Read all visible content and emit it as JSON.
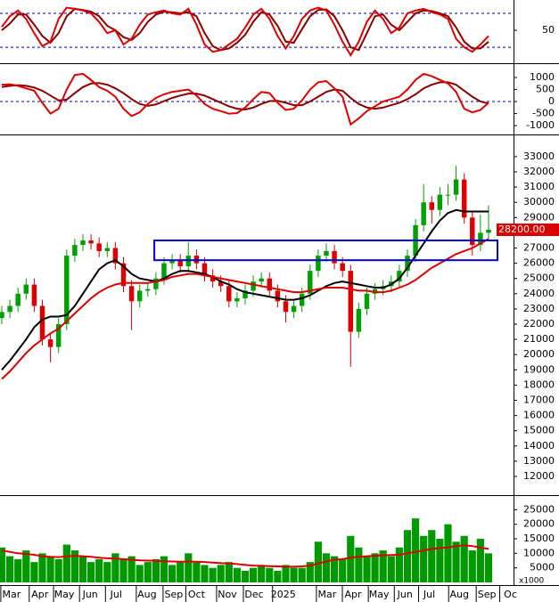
{
  "chart_data": [
    {
      "type": "line",
      "ylim": [
        -5,
        102
      ],
      "yticks": [
        50
      ],
      "levels": [
        20,
        80
      ],
      "level_color": "#0000aa",
      "series": [
        {
          "color": "#dd0000",
          "values": [
            56,
            75,
            85,
            70,
            45,
            22,
            30,
            70,
            90,
            88,
            85,
            80,
            65,
            45,
            50,
            25,
            35,
            60,
            78,
            82,
            85,
            80,
            78,
            88,
            60,
            25,
            12,
            15,
            25,
            35,
            55,
            78,
            88,
            70,
            40,
            18,
            40,
            70,
            85,
            90,
            85,
            60,
            30,
            6,
            30,
            65,
            85,
            70,
            45,
            55,
            80,
            85,
            88,
            82,
            78,
            70,
            35,
            20,
            12,
            25,
            40
          ]
        },
        {
          "color": "#880000",
          "values": [
            50,
            62,
            78,
            78,
            60,
            40,
            28,
            45,
            75,
            88,
            86,
            83,
            75,
            58,
            50,
            38,
            33,
            45,
            65,
            78,
            83,
            82,
            80,
            82,
            75,
            45,
            22,
            15,
            18,
            28,
            42,
            65,
            82,
            78,
            58,
            30,
            28,
            52,
            75,
            86,
            87,
            75,
            50,
            20,
            15,
            45,
            75,
            78,
            60,
            50,
            65,
            80,
            85,
            84,
            80,
            75,
            55,
            30,
            18,
            18,
            30
          ]
        }
      ]
    },
    {
      "type": "line",
      "ylim": [
        -1330,
        1480
      ],
      "yticks": [
        1000,
        500,
        0,
        -500,
        -1000
      ],
      "levels": [
        0
      ],
      "level_color": "#0000aa",
      "series": [
        {
          "color": "#dd0000",
          "values": [
            700,
            720,
            650,
            550,
            450,
            -50,
            -500,
            -300,
            500,
            1100,
            1150,
            900,
            600,
            450,
            200,
            -300,
            -600,
            -450,
            -100,
            150,
            300,
            400,
            450,
            500,
            250,
            -100,
            -300,
            -400,
            -500,
            -480,
            -250,
            100,
            400,
            350,
            -50,
            -350,
            -300,
            50,
            500,
            800,
            850,
            550,
            200,
            -950,
            -700,
            -400,
            -200,
            0,
            100,
            200,
            500,
            900,
            1150,
            1050,
            900,
            750,
            400,
            -300,
            -450,
            -350,
            -50
          ]
        },
        {
          "color": "#880000",
          "values": [
            600,
            650,
            680,
            650,
            580,
            450,
            250,
            50,
            80,
            350,
            600,
            750,
            770,
            700,
            550,
            350,
            100,
            -100,
            -180,
            -120,
            20,
            150,
            250,
            330,
            330,
            250,
            100,
            -50,
            -200,
            -300,
            -330,
            -250,
            -100,
            20,
            30,
            -50,
            -150,
            -150,
            0,
            200,
            400,
            500,
            450,
            150,
            -100,
            -250,
            -300,
            -250,
            -150,
            -50,
            100,
            300,
            550,
            700,
            800,
            800,
            700,
            450,
            200,
            0,
            -80
          ]
        }
      ]
    },
    {
      "type": "candlestick",
      "ylim": [
        10830,
        34340
      ],
      "yticks": [
        12000,
        13000,
        14000,
        15000,
        16000,
        17000,
        18000,
        19000,
        20000,
        21000,
        22000,
        23000,
        24000,
        25000,
        26000,
        27000,
        28000,
        29000,
        30000,
        31000,
        32000,
        33000
      ],
      "up_color": "#00a000",
      "down_color": "#dd0000",
      "open": [
        22400,
        22800,
        23200,
        24000,
        24600,
        23200,
        21000,
        20500,
        22000,
        26500,
        27200,
        27500,
        27300,
        26800,
        27000,
        26000,
        24500,
        23500,
        24200,
        24300,
        25000,
        26000,
        26200,
        25800,
        26500,
        26000,
        25200,
        24800,
        24500,
        23500,
        23700,
        24200,
        24800,
        25000,
        24200,
        23500,
        22800,
        23200,
        24000,
        25500,
        26500,
        26800,
        26000,
        25500,
        21500,
        23000,
        24000,
        24300,
        24500,
        24800,
        25500,
        26500,
        28500,
        30000,
        29500,
        30500,
        30500,
        31500,
        29000,
        27200,
        28000
      ],
      "high": [
        23200,
        23600,
        24400,
        25000,
        25000,
        23600,
        21400,
        22400,
        26900,
        27600,
        27900,
        27900,
        27700,
        27400,
        27400,
        26400,
        24900,
        24600,
        24700,
        25400,
        26400,
        26600,
        26600,
        27400,
        26900,
        26400,
        25600,
        25200,
        24900,
        24100,
        24600,
        25200,
        25400,
        25400,
        24600,
        23900,
        23600,
        24400,
        25900,
        26900,
        27300,
        27200,
        26400,
        25900,
        23400,
        24400,
        24700,
        24900,
        25200,
        25900,
        26900,
        28900,
        31200,
        30400,
        31000,
        31200,
        32400,
        31900,
        29400,
        29200,
        29800
      ],
      "low": [
        22000,
        22400,
        22800,
        23600,
        22800,
        20600,
        19500,
        20100,
        21600,
        26100,
        26800,
        26900,
        26400,
        26400,
        25600,
        24100,
        21600,
        23100,
        23800,
        23900,
        24600,
        25600,
        25400,
        25400,
        25600,
        24800,
        24400,
        24100,
        23100,
        23100,
        23300,
        23800,
        24400,
        23800,
        23100,
        22100,
        22400,
        22800,
        23600,
        25100,
        26100,
        25600,
        25100,
        19200,
        21100,
        22600,
        23600,
        23900,
        24100,
        24400,
        25100,
        26100,
        28100,
        28600,
        29100,
        29800,
        30100,
        28600,
        26500,
        26800,
        27600
      ],
      "close": [
        22800,
        23200,
        24000,
        24600,
        23200,
        21000,
        20500,
        22000,
        26500,
        27200,
        27500,
        27300,
        26800,
        27000,
        26000,
        24500,
        23500,
        24200,
        24300,
        25000,
        26000,
        26200,
        25800,
        26500,
        26000,
        25200,
        24800,
        24500,
        23500,
        23700,
        24200,
        24800,
        25000,
        24200,
        23500,
        22800,
        23200,
        24000,
        25500,
        26500,
        26800,
        26000,
        25500,
        21500,
        23000,
        24000,
        24300,
        24500,
        24800,
        25500,
        26500,
        28500,
        30000,
        29500,
        30500,
        30500,
        31500,
        29000,
        27200,
        28000,
        28200
      ],
      "series": [
        {
          "color": "#000000",
          "values": [
            19000,
            19600,
            20300,
            21000,
            21800,
            22300,
            22500,
            22500,
            22600,
            23200,
            24000,
            24800,
            25600,
            26000,
            26200,
            25800,
            25300,
            25000,
            24900,
            24800,
            25000,
            25300,
            25500,
            25500,
            25400,
            25300,
            25100,
            24800,
            24600,
            24300,
            24100,
            24000,
            23900,
            23800,
            23700,
            23600,
            23600,
            23700,
            23900,
            24200,
            24500,
            24700,
            24800,
            24700,
            24600,
            24500,
            24400,
            24400,
            24600,
            25000,
            25700,
            26500,
            27300,
            28100,
            28800,
            29300,
            29500,
            29400,
            29400,
            29400,
            29400
          ]
        },
        {
          "color": "#dd0000",
          "values": [
            18400,
            18900,
            19500,
            20100,
            20600,
            21000,
            21400,
            21700,
            22200,
            22700,
            23200,
            23700,
            24100,
            24400,
            24600,
            24700,
            24700,
            24700,
            24700,
            24800,
            24900,
            25100,
            25200,
            25300,
            25300,
            25200,
            25100,
            25000,
            24900,
            24800,
            24700,
            24600,
            24500,
            24400,
            24300,
            24200,
            24100,
            24100,
            24200,
            24300,
            24400,
            24400,
            24400,
            24300,
            24200,
            24200,
            24100,
            24100,
            24200,
            24400,
            24600,
            24900,
            25300,
            25700,
            26000,
            26300,
            26600,
            26800,
            27000,
            27300,
            27600
          ]
        }
      ],
      "box": {
        "x": [
          18.8,
          61.1
        ],
        "y": [
          26200,
          27500
        ],
        "color": "#0000dd"
      },
      "last_label": "28200.00",
      "last_label_color": "#dd0000"
    },
    {
      "type": "bar",
      "ylim": [
        0,
        29400
      ],
      "yticks": [
        5000,
        10000,
        15000,
        20000,
        25000
      ],
      "color": "#009900",
      "values": [
        12000,
        9000,
        8000,
        11000,
        7000,
        10000,
        9000,
        8000,
        13000,
        11000,
        9000,
        7000,
        8000,
        7000,
        10000,
        8000,
        9000,
        6000,
        7000,
        8000,
        9000,
        6000,
        7000,
        10000,
        7000,
        6000,
        5000,
        6000,
        7000,
        5000,
        4000,
        5000,
        6000,
        5000,
        4000,
        6000,
        5000,
        5000,
        7000,
        14000,
        10000,
        9000,
        8000,
        16000,
        12000,
        9000,
        10000,
        11000,
        9000,
        12000,
        18000,
        22000,
        16000,
        18000,
        15000,
        20000,
        14000,
        16000,
        11000,
        15000,
        10000
      ],
      "series": [
        {
          "color": "#dd0000",
          "values": [
            11000,
            10500,
            10000,
            9800,
            9500,
            9000,
            8800,
            8700,
            8900,
            9200,
            9000,
            8800,
            8500,
            8300,
            8200,
            8000,
            7800,
            7600,
            7500,
            7400,
            7300,
            7200,
            7100,
            7200,
            7100,
            7000,
            6800,
            6600,
            6500,
            6300,
            6000,
            5800,
            5700,
            5600,
            5500,
            5400,
            5400,
            5500,
            5800,
            6500,
            7200,
            7800,
            8000,
            8500,
            8800,
            9000,
            9200,
            9300,
            9400,
            9500,
            10000,
            10500,
            11000,
            11500,
            11800,
            12000,
            12500,
            12800,
            12500,
            12000,
            11500
          ]
        }
      ],
      "unit_label": "x1000",
      "xlim": [
        -0.22,
        63.08
      ],
      "xticks": [
        {
          "value": 1.2,
          "label": "Mar"
        },
        {
          "value": 4.7,
          "label": "Apr"
        },
        {
          "value": 7.7,
          "label": "May"
        },
        {
          "value": 10.9,
          "label": "Jun"
        },
        {
          "value": 14.1,
          "label": "Jul"
        },
        {
          "value": 17.9,
          "label": "Aug"
        },
        {
          "value": 21.2,
          "label": "Sep"
        },
        {
          "value": 24,
          "label": "Oct"
        },
        {
          "value": 27.8,
          "label": "Nov"
        },
        {
          "value": 31.1,
          "label": "Dec"
        },
        {
          "value": 34.7,
          "label": "2025"
        },
        {
          "value": 40.1,
          "label": "Mar"
        },
        {
          "value": 43.3,
          "label": "Apr"
        },
        {
          "value": 46.5,
          "label": "May"
        },
        {
          "value": 49.7,
          "label": "Jun"
        },
        {
          "value": 52.7,
          "label": "Jul"
        },
        {
          "value": 56.4,
          "label": "Aug"
        },
        {
          "value": 59.8,
          "label": "Sep"
        },
        {
          "value": 62.7,
          "label": "Oc"
        }
      ]
    }
  ]
}
